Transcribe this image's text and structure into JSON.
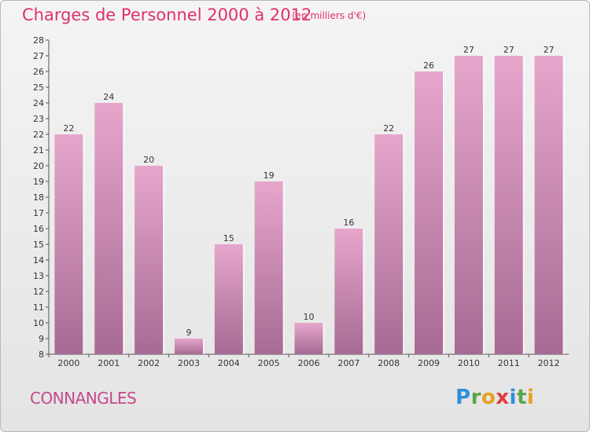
{
  "title": "Charges de Personnel 2000 à 2012",
  "subtitle": "(en milliers d'€)",
  "commune": "CONNANGLES",
  "logo": {
    "text": "Proxiti",
    "letters": [
      {
        "ch": "P",
        "color": "#2f8fd8"
      },
      {
        "ch": "r",
        "color": "#5aa64a"
      },
      {
        "ch": "o",
        "color": "#e8a020"
      },
      {
        "ch": "x",
        "color": "#e03a3a"
      },
      {
        "ch": "i",
        "color": "#2f8fd8"
      },
      {
        "ch": "t",
        "color": "#5aa64a"
      },
      {
        "ch": "i",
        "color": "#e8a020"
      }
    ]
  },
  "colors": {
    "title": "#e0306e",
    "bar_top": "#e6a6cc",
    "bar_bottom": "#a86a94",
    "background": "#eeeeee"
  },
  "chart_data": {
    "type": "bar",
    "categories": [
      "2000",
      "2001",
      "2002",
      "2003",
      "2004",
      "2005",
      "2006",
      "2007",
      "2008",
      "2009",
      "2010",
      "2011",
      "2012"
    ],
    "values": [
      22,
      24,
      20,
      9,
      15,
      19,
      10,
      16,
      22,
      26,
      27,
      27,
      27
    ],
    "ylim": [
      8,
      28
    ],
    "yticks": [
      8,
      9,
      10,
      11,
      12,
      13,
      14,
      15,
      16,
      17,
      18,
      19,
      20,
      21,
      22,
      23,
      24,
      25,
      26,
      27,
      28
    ],
    "grid": false,
    "data_labels": true
  }
}
